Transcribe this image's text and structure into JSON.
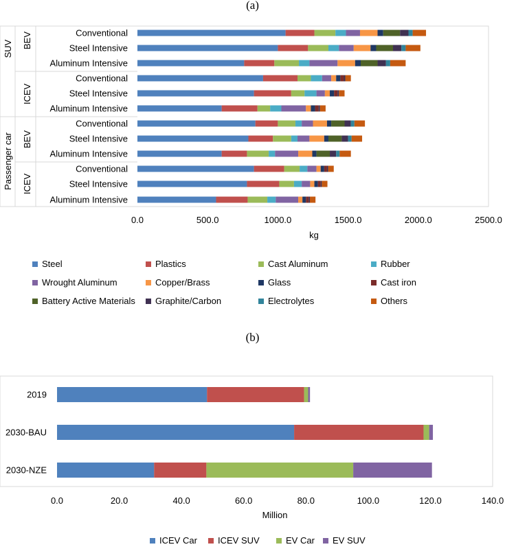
{
  "chart_data": [
    {
      "panel_label": "(a)",
      "type": "bar",
      "orientation": "horizontal",
      "stacked": true,
      "xlabel": "kg",
      "xlim": [
        0,
        2500
      ],
      "xticks": [
        "0.0",
        "500.0",
        "1000.0",
        "1500.0",
        "2000.0",
        "2500.0"
      ],
      "grid": false,
      "legend_position": "bottom",
      "groups": [
        {
          "label": "SUV",
          "subgroups": [
            {
              "label": "BEV",
              "categories": [
                "Conventional",
                "Steel Intensive",
                "Aluminum Intensive"
              ]
            },
            {
              "label": "ICEV",
              "categories": [
                "Conventional",
                "Steel Intensive",
                "Aluminum Intensive"
              ]
            }
          ]
        },
        {
          "label": "Passenger car",
          "subgroups": [
            {
              "label": "BEV",
              "categories": [
                "Conventional",
                "Steel Intensive",
                "Aluminum Intensive"
              ]
            },
            {
              "label": "ICEV",
              "categories": [
                "Conventional",
                "Steel Intensive",
                "Aluminum Intensive"
              ]
            }
          ]
        }
      ],
      "series": [
        {
          "name": "Steel",
          "color": "#4f81bd",
          "values": [
            1055,
            1000,
            760,
            895,
            830,
            600,
            840,
            790,
            600,
            830,
            780,
            560
          ]
        },
        {
          "name": "Plastics",
          "color": "#c0504d",
          "values": [
            205,
            215,
            215,
            245,
            265,
            255,
            160,
            175,
            180,
            215,
            230,
            225
          ]
        },
        {
          "name": "Cast Aluminum",
          "color": "#9bbb59",
          "values": [
            150,
            145,
            175,
            95,
            95,
            90,
            125,
            130,
            155,
            110,
            105,
            140
          ]
        },
        {
          "name": "Rubber",
          "color": "#4bacc6",
          "values": [
            75,
            75,
            75,
            80,
            85,
            80,
            45,
            45,
            45,
            55,
            55,
            60
          ]
        },
        {
          "name": "Wrought Aluminum",
          "color": "#8064a2",
          "values": [
            100,
            105,
            200,
            65,
            60,
            175,
            80,
            85,
            165,
            65,
            60,
            160
          ]
        },
        {
          "name": "Copper/Brass",
          "color": "#f79646",
          "values": [
            125,
            120,
            125,
            35,
            35,
            35,
            100,
            105,
            100,
            30,
            30,
            30
          ]
        },
        {
          "name": "Glass",
          "color": "#1f3864",
          "values": [
            40,
            40,
            40,
            30,
            30,
            30,
            30,
            30,
            30,
            25,
            25,
            25
          ]
        },
        {
          "name": "Cast iron",
          "color": "#7b2c2a",
          "values": [
            0,
            0,
            0,
            25,
            25,
            25,
            0,
            0,
            0,
            20,
            20,
            20
          ]
        },
        {
          "name": "Battery Active Materials",
          "color": "#4f6228",
          "values": [
            120,
            120,
            120,
            0,
            0,
            0,
            95,
            95,
            95,
            0,
            0,
            0
          ]
        },
        {
          "name": "Graphite/Carbon",
          "color": "#403152",
          "values": [
            60,
            60,
            60,
            10,
            10,
            10,
            45,
            45,
            45,
            8,
            8,
            8
          ]
        },
        {
          "name": "Electrolytes",
          "color": "#31849b",
          "values": [
            30,
            30,
            30,
            0,
            0,
            0,
            25,
            25,
            25,
            0,
            0,
            0
          ]
        },
        {
          "name": "Others",
          "color": "#c55a11",
          "values": [
            95,
            105,
            110,
            40,
            40,
            40,
            75,
            75,
            80,
            40,
            40,
            40
          ]
        }
      ]
    },
    {
      "panel_label": "(b)",
      "type": "bar",
      "orientation": "horizontal",
      "stacked": true,
      "xlabel": "Million",
      "xlim": [
        0,
        140
      ],
      "xticks": [
        "0.0",
        "20.0",
        "40.0",
        "60.0",
        "80.0",
        "100.0",
        "120.0",
        "140.0"
      ],
      "grid": false,
      "legend_position": "bottom",
      "categories": [
        "2019",
        "2030-BAU",
        "2030-NZE"
      ],
      "series": [
        {
          "name": "ICEV Car",
          "color": "#4f81bd",
          "values": [
            48.2,
            76.2,
            31.2
          ]
        },
        {
          "name": "ICEV SUV",
          "color": "#c0504d",
          "values": [
            31.2,
            41.6,
            16.8
          ]
        },
        {
          "name": "EV Car",
          "color": "#9bbb59",
          "values": [
            1.3,
            1.8,
            47.2
          ]
        },
        {
          "name": "EV SUV",
          "color": "#8064a2",
          "values": [
            0.6,
            1.2,
            25.3
          ]
        }
      ]
    }
  ]
}
